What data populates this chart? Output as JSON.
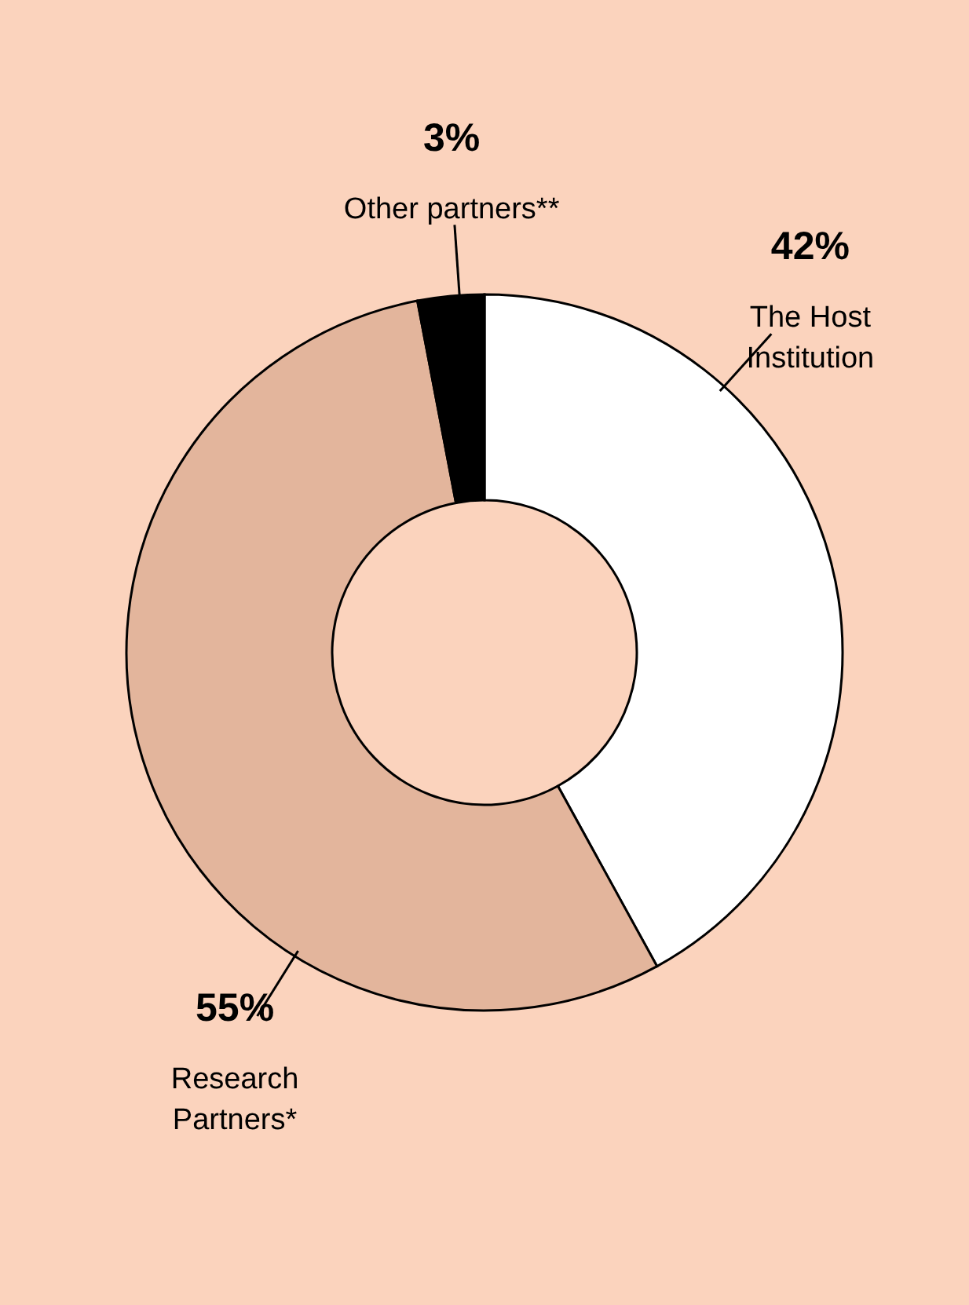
{
  "chart_data": {
    "type": "donut",
    "categories": [
      "The Host Institution",
      "Research Partners*",
      "Other partners**"
    ],
    "values": [
      42,
      55,
      3
    ],
    "colors": [
      "#ffffff",
      "#e3b59c",
      "#000000"
    ],
    "value_labels": [
      "42%",
      "55%",
      "3%"
    ]
  }
}
